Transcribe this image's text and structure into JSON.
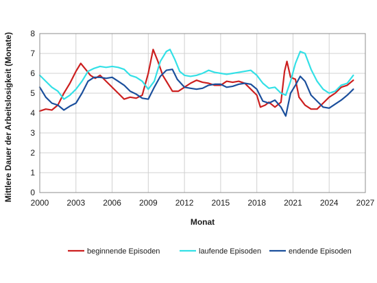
{
  "chart_data": {
    "type": "line",
    "xlabel": "Monat",
    "ylabel": "Mittlere Dauer der Arbeitslosigkeit (Monate)",
    "xlim": [
      2000,
      2027
    ],
    "ylim": [
      0,
      8
    ],
    "x_ticks": [
      "2000",
      "2003",
      "2006",
      "2009",
      "2012",
      "2015",
      "2018",
      "2021",
      "2024",
      "2027"
    ],
    "y_ticks": [
      "0",
      "1",
      "2",
      "3",
      "4",
      "5",
      "6",
      "7",
      "8"
    ],
    "grid": true,
    "legend_position": "bottom",
    "series": [
      {
        "name": "beginnende Episoden",
        "color": "#cc1f1f",
        "points": [
          [
            2000.0,
            4.1
          ],
          [
            2000.5,
            4.2
          ],
          [
            2001.0,
            4.15
          ],
          [
            2001.5,
            4.4
          ],
          [
            2002.0,
            5.0
          ],
          [
            2002.5,
            5.5
          ],
          [
            2003.0,
            6.1
          ],
          [
            2003.4,
            6.5
          ],
          [
            2003.8,
            6.2
          ],
          [
            2004.2,
            5.9
          ],
          [
            2004.6,
            5.75
          ],
          [
            2005.0,
            5.9
          ],
          [
            2005.5,
            5.6
          ],
          [
            2006.0,
            5.3
          ],
          [
            2006.5,
            5.0
          ],
          [
            2007.0,
            4.7
          ],
          [
            2007.5,
            4.8
          ],
          [
            2008.0,
            4.75
          ],
          [
            2008.5,
            4.9
          ],
          [
            2009.0,
            6.0
          ],
          [
            2009.4,
            7.2
          ],
          [
            2009.8,
            6.6
          ],
          [
            2010.2,
            5.9
          ],
          [
            2010.6,
            5.5
          ],
          [
            2011.0,
            5.1
          ],
          [
            2011.5,
            5.1
          ],
          [
            2012.0,
            5.3
          ],
          [
            2012.5,
            5.5
          ],
          [
            2013.0,
            5.65
          ],
          [
            2013.5,
            5.55
          ],
          [
            2014.0,
            5.5
          ],
          [
            2014.5,
            5.4
          ],
          [
            2015.0,
            5.4
          ],
          [
            2015.5,
            5.6
          ],
          [
            2016.0,
            5.55
          ],
          [
            2016.5,
            5.6
          ],
          [
            2017.0,
            5.5
          ],
          [
            2017.5,
            5.2
          ],
          [
            2018.0,
            4.9
          ],
          [
            2018.3,
            4.3
          ],
          [
            2018.7,
            4.4
          ],
          [
            2019.0,
            4.55
          ],
          [
            2019.5,
            4.3
          ],
          [
            2020.0,
            4.55
          ],
          [
            2020.3,
            6.1
          ],
          [
            2020.5,
            6.6
          ],
          [
            2020.8,
            5.8
          ],
          [
            2021.2,
            5.7
          ],
          [
            2021.5,
            4.8
          ],
          [
            2022.0,
            4.4
          ],
          [
            2022.5,
            4.2
          ],
          [
            2023.0,
            4.2
          ],
          [
            2023.5,
            4.5
          ],
          [
            2024.0,
            4.8
          ],
          [
            2024.5,
            5.0
          ],
          [
            2025.0,
            5.3
          ],
          [
            2025.5,
            5.4
          ],
          [
            2026.0,
            5.65
          ]
        ]
      },
      {
        "name": "laufende Episoden",
        "color": "#33e0e6",
        "points": [
          [
            2000.0,
            5.9
          ],
          [
            2000.5,
            5.6
          ],
          [
            2001.0,
            5.3
          ],
          [
            2001.5,
            5.1
          ],
          [
            2002.0,
            4.7
          ],
          [
            2002.5,
            4.9
          ],
          [
            2003.0,
            5.2
          ],
          [
            2003.5,
            5.6
          ],
          [
            2004.0,
            6.1
          ],
          [
            2004.5,
            6.25
          ],
          [
            2005.0,
            6.35
          ],
          [
            2005.5,
            6.3
          ],
          [
            2006.0,
            6.35
          ],
          [
            2006.5,
            6.3
          ],
          [
            2007.0,
            6.2
          ],
          [
            2007.5,
            5.9
          ],
          [
            2008.0,
            5.8
          ],
          [
            2008.5,
            5.6
          ],
          [
            2009.0,
            5.2
          ],
          [
            2009.5,
            5.6
          ],
          [
            2010.0,
            6.6
          ],
          [
            2010.5,
            7.1
          ],
          [
            2010.8,
            7.2
          ],
          [
            2011.2,
            6.7
          ],
          [
            2011.6,
            6.1
          ],
          [
            2012.0,
            5.9
          ],
          [
            2012.5,
            5.85
          ],
          [
            2013.0,
            5.9
          ],
          [
            2013.5,
            6.0
          ],
          [
            2014.0,
            6.15
          ],
          [
            2014.5,
            6.05
          ],
          [
            2015.0,
            6.0
          ],
          [
            2015.5,
            5.95
          ],
          [
            2016.0,
            6.0
          ],
          [
            2016.5,
            6.05
          ],
          [
            2017.0,
            6.1
          ],
          [
            2017.5,
            6.15
          ],
          [
            2018.0,
            5.9
          ],
          [
            2018.5,
            5.5
          ],
          [
            2019.0,
            5.25
          ],
          [
            2019.5,
            5.3
          ],
          [
            2020.0,
            5.0
          ],
          [
            2020.4,
            4.9
          ],
          [
            2020.8,
            5.6
          ],
          [
            2021.2,
            6.5
          ],
          [
            2021.6,
            7.1
          ],
          [
            2022.0,
            7.0
          ],
          [
            2022.5,
            6.2
          ],
          [
            2023.0,
            5.6
          ],
          [
            2023.5,
            5.2
          ],
          [
            2024.0,
            5.0
          ],
          [
            2024.5,
            5.1
          ],
          [
            2025.0,
            5.4
          ],
          [
            2025.5,
            5.5
          ],
          [
            2026.0,
            5.9
          ]
        ]
      },
      {
        "name": "endende Episoden",
        "color": "#1b4f9c",
        "points": [
          [
            2000.0,
            5.3
          ],
          [
            2000.5,
            4.8
          ],
          [
            2001.0,
            4.5
          ],
          [
            2001.5,
            4.4
          ],
          [
            2002.0,
            4.15
          ],
          [
            2002.5,
            4.35
          ],
          [
            2003.0,
            4.5
          ],
          [
            2003.5,
            5.0
          ],
          [
            2004.0,
            5.6
          ],
          [
            2004.5,
            5.8
          ],
          [
            2005.0,
            5.8
          ],
          [
            2005.5,
            5.75
          ],
          [
            2006.0,
            5.8
          ],
          [
            2006.5,
            5.6
          ],
          [
            2007.0,
            5.4
          ],
          [
            2007.5,
            5.1
          ],
          [
            2008.0,
            4.95
          ],
          [
            2008.5,
            4.75
          ],
          [
            2009.0,
            4.7
          ],
          [
            2009.5,
            5.3
          ],
          [
            2010.0,
            5.85
          ],
          [
            2010.5,
            6.15
          ],
          [
            2011.0,
            6.2
          ],
          [
            2011.4,
            5.7
          ],
          [
            2012.0,
            5.3
          ],
          [
            2012.5,
            5.25
          ],
          [
            2013.0,
            5.2
          ],
          [
            2013.5,
            5.25
          ],
          [
            2014.0,
            5.4
          ],
          [
            2014.5,
            5.45
          ],
          [
            2015.0,
            5.45
          ],
          [
            2015.5,
            5.3
          ],
          [
            2016.0,
            5.35
          ],
          [
            2016.5,
            5.45
          ],
          [
            2017.0,
            5.5
          ],
          [
            2017.5,
            5.45
          ],
          [
            2018.0,
            5.2
          ],
          [
            2018.5,
            4.6
          ],
          [
            2019.0,
            4.5
          ],
          [
            2019.5,
            4.65
          ],
          [
            2020.0,
            4.3
          ],
          [
            2020.4,
            3.85
          ],
          [
            2020.8,
            5.0
          ],
          [
            2021.2,
            5.4
          ],
          [
            2021.6,
            5.85
          ],
          [
            2022.0,
            5.6
          ],
          [
            2022.5,
            4.9
          ],
          [
            2023.0,
            4.6
          ],
          [
            2023.5,
            4.3
          ],
          [
            2024.0,
            4.25
          ],
          [
            2024.5,
            4.45
          ],
          [
            2025.0,
            4.65
          ],
          [
            2025.5,
            4.9
          ],
          [
            2026.0,
            5.2
          ]
        ]
      }
    ]
  }
}
